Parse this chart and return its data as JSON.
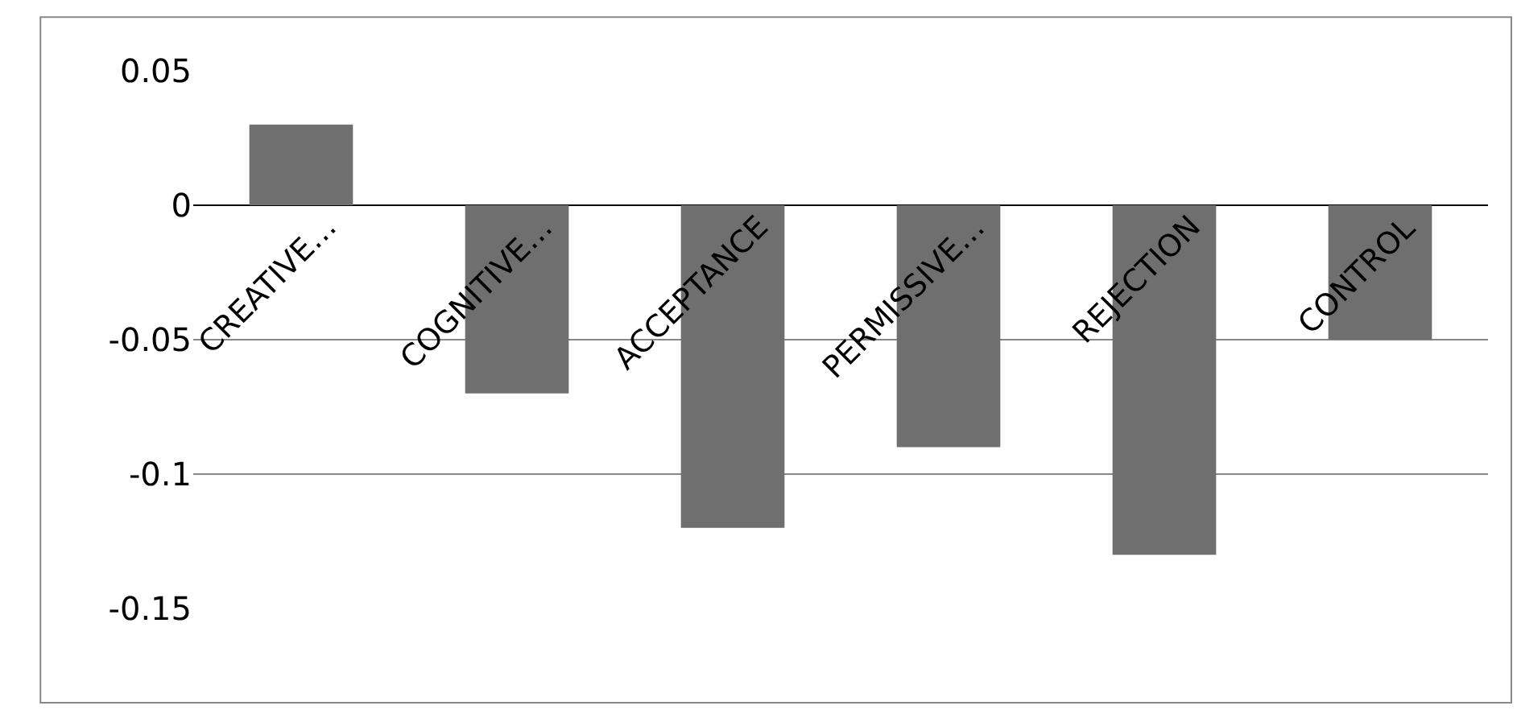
{
  "chart_data": {
    "type": "bar",
    "categories": [
      "CREATIVE…",
      "COGNITIVE…",
      "ACCEPTANCE",
      "PERMISSIVE…",
      "REJECTION",
      "CONTROL"
    ],
    "values": [
      0.03,
      -0.07,
      -0.12,
      -0.09,
      -0.13,
      -0.05
    ],
    "color": "#6f6f6f",
    "ylim": [
      -0.15,
      0.05
    ],
    "yticks": [
      -0.15,
      -0.1,
      -0.05,
      0,
      0.05
    ],
    "grid": "y",
    "legend": false
  }
}
